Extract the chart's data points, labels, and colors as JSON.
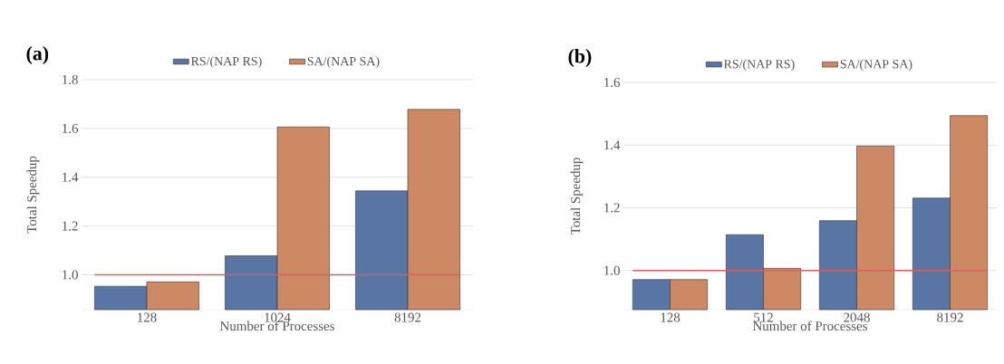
{
  "chart_data": [
    {
      "type": "bar",
      "title": "(a)",
      "xlabel": "Number of Processes",
      "ylabel": "Total Speedup",
      "categories": [
        "128",
        "1024",
        "8192"
      ],
      "series": [
        {
          "name": "RS/(NAP RS)",
          "color": "#5875a4",
          "values": [
            0.953,
            1.078,
            1.344
          ]
        },
        {
          "name": "SA/(NAP SA)",
          "color": "#cc8963",
          "values": [
            0.971,
            1.606,
            1.678
          ]
        }
      ],
      "ylim": [
        0.857,
        1.8
      ],
      "yticks": [
        {
          "value": 1.0,
          "label": "1.0"
        },
        {
          "value": 1.2,
          "label": "1.2"
        },
        {
          "value": 1.4,
          "label": "1.4"
        },
        {
          "value": 1.6,
          "label": "1.6"
        },
        {
          "value": 1.8,
          "label": "1.8"
        }
      ],
      "grid": "y",
      "legend": "top",
      "ref_lines": [
        {
          "axis": "y",
          "value": 1.0,
          "color": "#d65f5f"
        }
      ]
    },
    {
      "type": "bar",
      "title": "(b)",
      "xlabel": "Number of Processes",
      "ylabel": "Total Speedup",
      "categories": [
        "128",
        "512",
        "2048",
        "8192"
      ],
      "series": [
        {
          "name": "RS/(NAP RS)",
          "color": "#5875a4",
          "values": [
            0.971,
            1.114,
            1.159,
            1.231
          ]
        },
        {
          "name": "SA/(NAP SA)",
          "color": "#cc8963",
          "values": [
            0.971,
            1.007,
            1.397,
            1.494
          ]
        }
      ],
      "ylim": [
        0.875,
        1.6
      ],
      "yticks": [
        {
          "value": 1.0,
          "label": "1.0"
        },
        {
          "value": 1.2,
          "label": "1.2"
        },
        {
          "value": 1.4,
          "label": "1.4"
        },
        {
          "value": 1.6,
          "label": "1.6"
        }
      ],
      "grid": "y",
      "legend": "top",
      "ref_lines": [
        {
          "axis": "y",
          "value": 1.0,
          "color": "#d65f5f"
        }
      ]
    }
  ]
}
